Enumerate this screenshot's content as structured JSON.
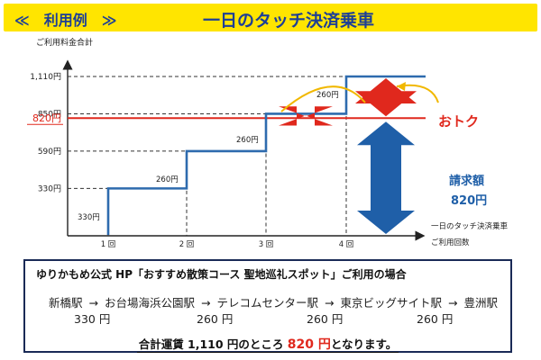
{
  "banner": {
    "label": "≪　利用例　≫",
    "title": "一日のタッチ決済乗車"
  },
  "chart_data": {
    "type": "line",
    "ylabel": "ご利用料金合計",
    "xlabel_top": "一日のタッチ決済乗車",
    "xlabel_bottom": "ご利用回数",
    "categories": [
      "1 回",
      "2 回",
      "3 回",
      "4 回"
    ],
    "cumulative": [
      330,
      590,
      850,
      1110
    ],
    "increments": [
      "330円",
      "260円",
      "260円",
      "260円"
    ],
    "yticks": [
      "330円",
      "590円",
      "850円",
      "1,110円"
    ],
    "ylim": [
      0,
      1200
    ],
    "cap": {
      "value": 820,
      "label": "820円",
      "color": "#e0281d"
    },
    "savings_label": "おトク",
    "billed_label": "請求額",
    "billed_amount": "820円",
    "colors": {
      "series": "#2e6bae",
      "savings": "#e0281d",
      "billed": "#1f5fa8",
      "arc": "#f1b800"
    }
  },
  "route": {
    "title": "ゆりかもめ公式 HP「おすすめ散策コース 聖地巡礼スポット」ご利用の場合",
    "stations": [
      "新橋駅",
      "お台場海浜公園駅",
      "テレコムセンター駅",
      "東京ビッグサイト駅",
      "豊洲駅"
    ],
    "arrow": "→",
    "fares": [
      "330 円",
      "260 円",
      "260 円",
      "260 円"
    ],
    "total_prefix": "合計運賃 1,110 円のところ",
    "total_amount": "820 円",
    "total_suffix": "となります。"
  }
}
